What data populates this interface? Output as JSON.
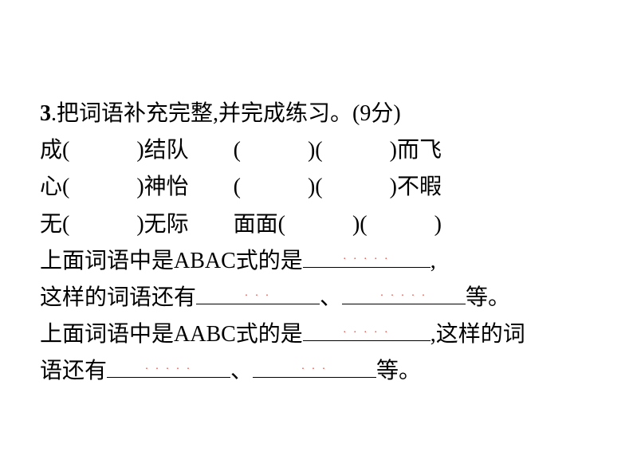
{
  "content": {
    "line1_prefix": "3",
    "line1_text": ".把词语补充完整,并完成练习。(9分)",
    "line2": "成(　　　)结队　　(　　　)(　　　)而飞",
    "line3": "心(　　　)神怡　　(　　　)(　　　)不暇",
    "line4": "无(　　　)无际　　面面(　　　)(　　　)",
    "line5_a": "上面词语中是ABAC式的是",
    "line5_end": ",",
    "line6_a": "这样的词语还有",
    "line6_sep": "、",
    "line6_end": "等。",
    "line7_a": "上面词语中是AABC式的是",
    "line7_end": ",这样的词",
    "line8_a": "语还有",
    "line8_sep": "、",
    "line8_end": "等。"
  },
  "redtext": {
    "r1": ". . . . .",
    "r2": ".  .  .",
    "r3": ". . . . .",
    "r4": ". . . . .",
    "r5": ". . . . .",
    "r6": ".   .   ."
  },
  "styles": {
    "text_color": "#000000",
    "background_color": "#ffffff",
    "font_size": 28,
    "red_color": "#e8453c"
  }
}
